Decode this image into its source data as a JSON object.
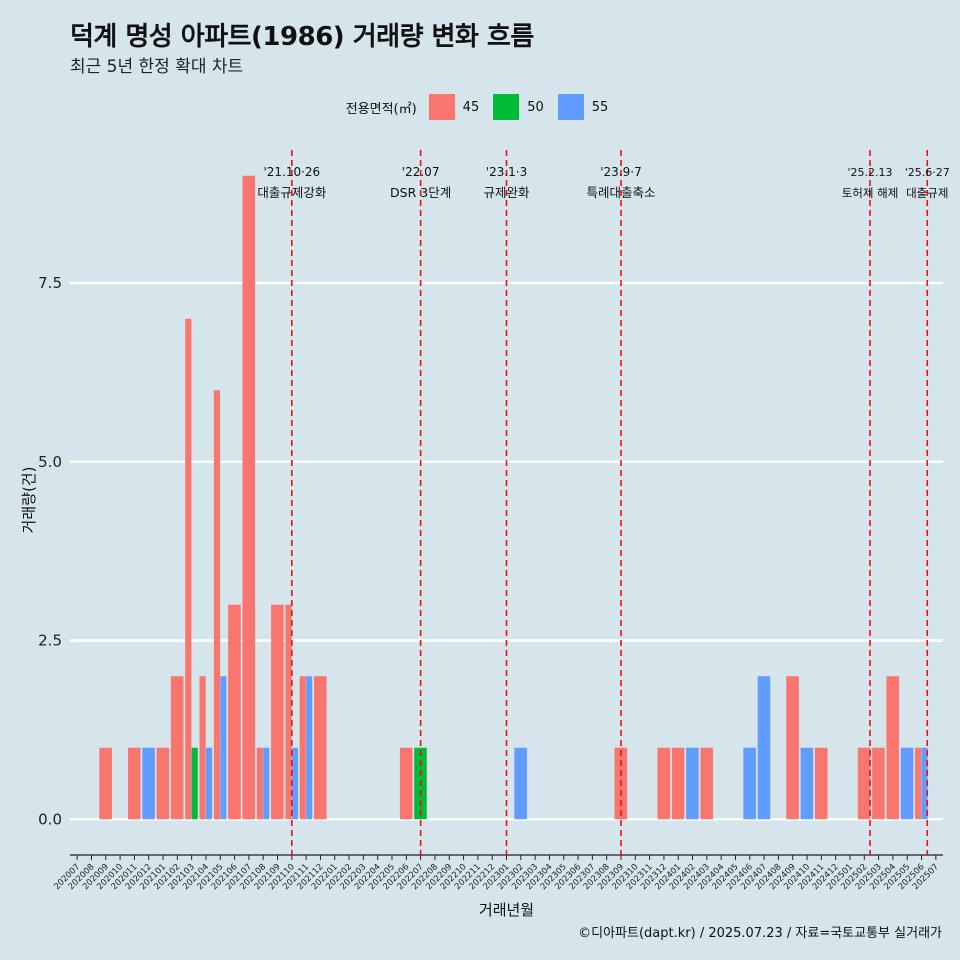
{
  "header": {
    "title": "덕계 명성 아파트(1986) 거래량 변화 흐름",
    "subtitle": "최근 5년 한정 확대 차트"
  },
  "legend": {
    "title": "전용면적(㎡)",
    "items": [
      {
        "label": "45",
        "color": "#f8766d"
      },
      {
        "label": "50",
        "color": "#00ba38"
      },
      {
        "label": "55",
        "color": "#619cff"
      }
    ]
  },
  "caption": "©디아파트(dapt.kr) / 2025.07.23 / 자료=국토교통부 실거래가",
  "chart_data": {
    "type": "bar",
    "xlabel": "거래년월",
    "ylabel": "거래량(건)",
    "ylim": [
      -0.5,
      9.5
    ],
    "yticks": [
      "0.0",
      "2.5",
      "5.0",
      "7.5"
    ],
    "ytick_values": [
      0,
      2.5,
      5,
      7.5
    ],
    "grid": true,
    "legend_position": "top",
    "categories": [
      "202007",
      "202008",
      "202009",
      "202010",
      "202011",
      "202012",
      "202101",
      "202102",
      "202103",
      "202104",
      "202105",
      "202106",
      "202107",
      "202108",
      "202109",
      "202110",
      "202111",
      "202112",
      "202201",
      "202202",
      "202203",
      "202204",
      "202205",
      "202206",
      "202207",
      "202208",
      "202209",
      "202210",
      "202211",
      "202212",
      "202301",
      "202302",
      "202303",
      "202304",
      "202305",
      "202306",
      "202307",
      "202308",
      "202309",
      "202310",
      "202311",
      "202312",
      "202401",
      "202402",
      "202403",
      "202404",
      "202405",
      "202406",
      "202407",
      "202408",
      "202409",
      "202410",
      "202411",
      "202412",
      "202501",
      "202502",
      "202503",
      "202504",
      "202505",
      "202506",
      "202507"
    ],
    "series": [
      {
        "name": "45",
        "color": "#f8766d",
        "values": [
          0,
          0,
          1,
          0,
          1,
          0,
          1,
          2,
          7,
          2,
          6,
          3,
          9,
          1,
          3,
          3,
          2,
          2,
          0,
          0,
          0,
          0,
          0,
          1,
          0,
          0,
          0,
          0,
          0,
          0,
          0,
          0,
          0,
          0,
          0,
          0,
          0,
          0,
          1,
          0,
          0,
          1,
          1,
          0,
          1,
          0,
          0,
          0,
          0,
          0,
          2,
          0,
          1,
          0,
          0,
          1,
          1,
          2,
          0,
          1,
          0
        ]
      },
      {
        "name": "50",
        "color": "#00ba38",
        "values": [
          0,
          0,
          0,
          0,
          0,
          0,
          0,
          0,
          1,
          0,
          0,
          0,
          0,
          0,
          0,
          0,
          0,
          0,
          0,
          0,
          0,
          0,
          0,
          0,
          1,
          0,
          0,
          0,
          0,
          0,
          0,
          0,
          0,
          0,
          0,
          0,
          0,
          0,
          0,
          0,
          0,
          0,
          0,
          0,
          0,
          0,
          0,
          0,
          0,
          0,
          0,
          0,
          0,
          0,
          0,
          0,
          0,
          0,
          0,
          0,
          0
        ]
      },
      {
        "name": "55",
        "color": "#619cff",
        "values": [
          0,
          0,
          0,
          0,
          0,
          1,
          0,
          0,
          0,
          1,
          2,
          0,
          0,
          1,
          0,
          1,
          2,
          0,
          0,
          0,
          0,
          0,
          0,
          0,
          0,
          0,
          0,
          0,
          0,
          0,
          0,
          1,
          0,
          0,
          0,
          0,
          0,
          0,
          0,
          0,
          0,
          0,
          0,
          1,
          0,
          0,
          0,
          1,
          2,
          0,
          0,
          1,
          0,
          0,
          0,
          0,
          0,
          0,
          1,
          1,
          0
        ]
      }
    ],
    "annotations": [
      {
        "at": 15.0,
        "date": "'21.10·26",
        "text": "대출규제강화"
      },
      {
        "at": 24.0,
        "date": "'22.07",
        "text": "DSR 3단계"
      },
      {
        "at": 30.0,
        "date": "'23.1·3",
        "text": "규제완화"
      },
      {
        "at": 38.0,
        "date": "'23.9·7",
        "text": "특례대출축소"
      },
      {
        "at": 55.4,
        "date": "'25.2.13",
        "text": "토허제 해제"
      },
      {
        "at": 59.4,
        "date": "'25.6·27",
        "text": "대출규제"
      }
    ]
  }
}
